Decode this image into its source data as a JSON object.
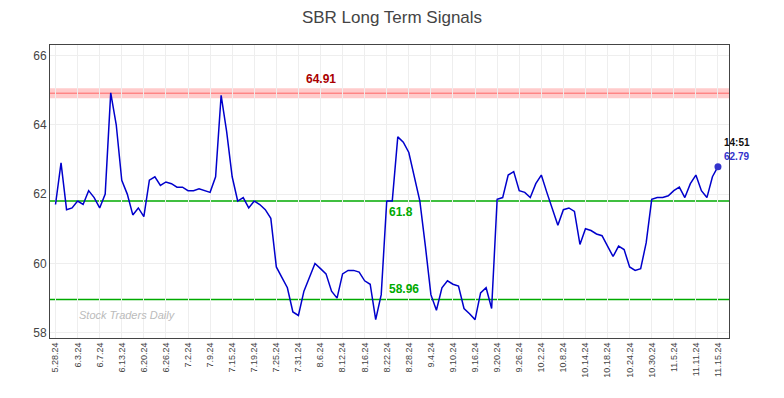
{
  "chart_data": {
    "type": "line",
    "title": "SBR Long Term Signals",
    "categories": [
      "5.28.24",
      null,
      null,
      null,
      "6.3.24",
      null,
      null,
      null,
      "6.7.24",
      null,
      null,
      null,
      "6.13.24",
      null,
      null,
      null,
      "6.20.24",
      null,
      null,
      null,
      "6.26.24",
      null,
      null,
      null,
      "7.2.24",
      null,
      null,
      null,
      "7.9.24",
      null,
      null,
      null,
      "7.15.24",
      null,
      null,
      null,
      "7.19.24",
      null,
      null,
      null,
      "7.25.24",
      null,
      null,
      null,
      "7.31.24",
      null,
      null,
      null,
      "8.6.24",
      null,
      null,
      null,
      "8.12.24",
      null,
      null,
      null,
      "8.16.24",
      null,
      null,
      null,
      "8.22.24",
      null,
      null,
      null,
      "8.28.24",
      null,
      null,
      null,
      "9.4.24",
      null,
      null,
      null,
      "9.10.24",
      null,
      null,
      null,
      "9.16.24",
      null,
      null,
      null,
      "9.20.24",
      null,
      null,
      null,
      "9.26.24",
      null,
      null,
      null,
      "10.2.24",
      null,
      null,
      null,
      "10.8.24",
      null,
      null,
      null,
      "10.14.24",
      null,
      null,
      null,
      "10.18.24",
      null,
      null,
      null,
      "10.24.24",
      null,
      null,
      null,
      "10.30.24",
      null,
      null,
      null,
      "11.5.24",
      null,
      null,
      null,
      "11.11.24",
      null,
      null,
      null,
      "11.15.24"
    ],
    "values": [
      61.7,
      62.9,
      61.55,
      61.6,
      61.8,
      61.7,
      62.1,
      61.9,
      61.6,
      62.0,
      64.92,
      64.0,
      62.4,
      62.0,
      61.4,
      61.6,
      61.35,
      62.4,
      62.5,
      62.25,
      62.35,
      62.3,
      62.2,
      62.2,
      62.1,
      62.1,
      62.15,
      62.1,
      62.05,
      62.5,
      64.85,
      63.8,
      62.5,
      61.8,
      61.9,
      61.6,
      61.8,
      61.7,
      61.55,
      61.3,
      59.9,
      59.6,
      59.3,
      58.6,
      58.5,
      59.2,
      59.6,
      60.0,
      59.85,
      59.7,
      59.2,
      59.0,
      59.7,
      59.8,
      59.8,
      59.75,
      59.5,
      59.4,
      58.38,
      59.1,
      61.8,
      61.8,
      63.65,
      63.5,
      63.2,
      62.5,
      61.8,
      60.5,
      59.1,
      58.65,
      59.3,
      59.5,
      59.4,
      59.35,
      58.7,
      58.55,
      58.38,
      59.15,
      59.3,
      58.7,
      61.85,
      61.9,
      62.55,
      62.65,
      62.1,
      62.05,
      61.9,
      62.3,
      62.55,
      62.05,
      61.55,
      61.1,
      61.55,
      61.6,
      61.5,
      60.55,
      61.0,
      60.95,
      60.85,
      60.8,
      60.5,
      60.2,
      60.5,
      60.4,
      59.9,
      59.8,
      59.85,
      60.6,
      61.85,
      61.9,
      61.9,
      61.95,
      62.1,
      62.2,
      61.9,
      62.3,
      62.55,
      62.1,
      61.9,
      62.5,
      62.79
    ],
    "color": "#0000cc",
    "ylim": [
      57.85,
      66.3
    ],
    "yticks": [
      58,
      60,
      62,
      64,
      66
    ],
    "grid": true,
    "hlines": [
      {
        "value": 64.91,
        "color": "#ffaaaa",
        "line_color": "#ff6666",
        "label_color": "#aa0000",
        "line_style": "band"
      },
      {
        "value": 61.8,
        "color": "#00aa00",
        "label_color": "#00aa00"
      },
      {
        "value": 58.96,
        "color": "#00aa00",
        "label_color": "#00aa00"
      }
    ],
    "last_point": {
      "label": "14:51",
      "value": 62.79,
      "color": "#3333cc",
      "label_color": "#111111"
    },
    "annotations": [
      {
        "text": "Stock Traders Daily",
        "color": "#bbbbbb"
      }
    ]
  }
}
